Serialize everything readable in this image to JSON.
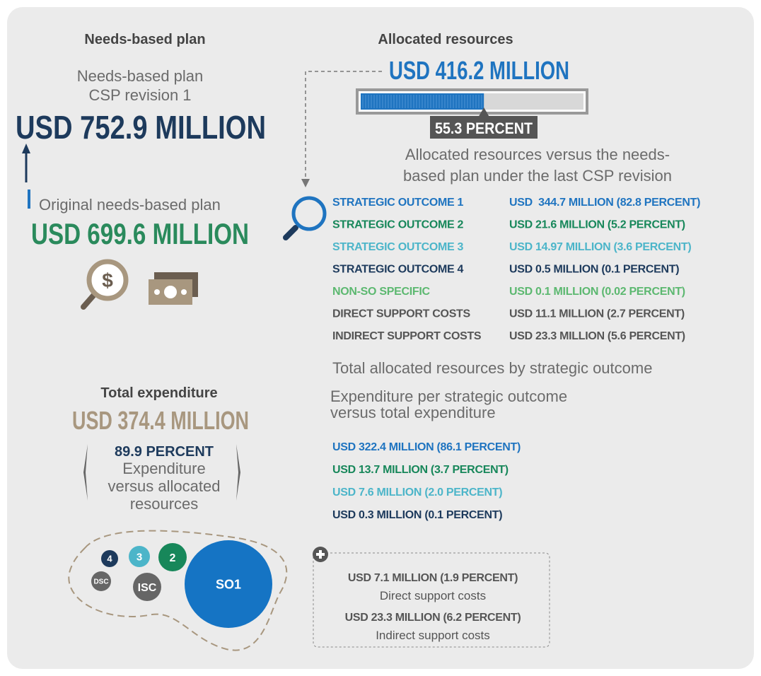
{
  "needs_based": {
    "heading": "Needs-based plan",
    "label_line1": "Needs-based plan",
    "label_line2": "CSP revision 1",
    "amount": "USD 752.9 MILLION",
    "original_label": "Original needs-based plan",
    "original_amount": "USD 699.6 MILLION"
  },
  "allocated": {
    "heading": "Allocated resources",
    "amount": "USD 416.2 MILLION",
    "share": {
      "value": 55.3,
      "label": "55.3 PERCENT"
    },
    "caption_line1": "Allocated resources versus the needs-",
    "caption_line2": "based plan under the last CSP revision",
    "rows": [
      {
        "name": "STRATEGIC OUTCOME 1",
        "amount": "USD  344.7 MILLION (82.8 PERCENT)",
        "color": "#1f74c0"
      },
      {
        "name": "STRATEGIC OUTCOME 2",
        "amount": "USD 21.6 MILLION (5.2 PERCENT)",
        "color": "#17875a"
      },
      {
        "name": "STRATEGIC OUTCOME 3",
        "amount": "USD 14.97 MILLION (3.6 PERCENT)",
        "color": "#4cb5c9"
      },
      {
        "name": "STRATEGIC OUTCOME 4",
        "amount": "USD 0.5 MILLION (0.1 PERCENT)",
        "color": "#1d3a5c"
      },
      {
        "name": "NON-SO SPECIFIC",
        "amount": "USD 0.1 MILLION (0.02 PERCENT)",
        "color": "#5cb870"
      },
      {
        "name": "DIRECT SUPPORT COSTS",
        "amount": "USD 11.1 MILLION (2.7 PERCENT)",
        "color": "#555555"
      },
      {
        "name": "INDIRECT SUPPORT COSTS",
        "amount": "USD 23.3 MILLION (5.6 PERCENT)",
        "color": "#555555"
      }
    ],
    "footer": "Total allocated resources by strategic outcome"
  },
  "expenditure": {
    "heading": "Total expenditure",
    "amount": "USD 374.4 MILLION",
    "percent": "89.9 PERCENT",
    "caption": [
      "Expenditure",
      "versus allocated",
      "resources"
    ],
    "per_so_caption": [
      "Expenditure per strategic outcome",
      "versus total expenditure"
    ],
    "per_so": [
      {
        "amount": "USD 322.4 MILLION (86.1 PERCENT)",
        "color": "#1f74c0"
      },
      {
        "amount": "USD 13.7 MILLION (3.7 PERCENT)",
        "color": "#17875a"
      },
      {
        "amount": "USD 7.6 MILLION (2.0 PERCENT)",
        "color": "#4cb5c9"
      },
      {
        "amount": "USD 0.3 MILLION (0.1 PERCENT)",
        "color": "#1d3a5c"
      }
    ],
    "support": [
      {
        "amount": "USD 7.1 MILLION (1.9 PERCENT)",
        "label": "Direct support costs"
      },
      {
        "amount": "USD 23.3 MILLION (6.2 PERCENT)",
        "label": "Indirect support costs"
      }
    ],
    "bubbles": [
      {
        "label": "4",
        "color": "#1d3a5c"
      },
      {
        "label": "3",
        "color": "#4cb5c9"
      },
      {
        "label": "2",
        "color": "#17875a"
      },
      {
        "label": "DSC",
        "color": "#666666"
      },
      {
        "label": "ISC",
        "color": "#666666"
      },
      {
        "label": "SO1",
        "color": "#1574c4"
      }
    ]
  }
}
